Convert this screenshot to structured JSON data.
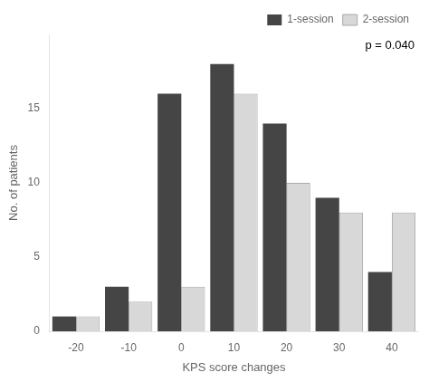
{
  "chart_data": {
    "type": "bar",
    "categories": [
      -20,
      -10,
      0,
      10,
      20,
      30,
      40
    ],
    "series": [
      {
        "name": "1-session",
        "color": "#454545",
        "values": [
          1,
          3,
          16,
          18,
          14,
          9,
          4
        ]
      },
      {
        "name": "2-session",
        "color": "#d8d8d8",
        "values": [
          1,
          2,
          3,
          16,
          10,
          8,
          8
        ]
      }
    ],
    "xlabel": "KPS score changes",
    "ylabel": "No. of patients",
    "ylim": [
      0,
      20
    ],
    "yticks": [
      0,
      5,
      10,
      15
    ],
    "annotation": "p = 0.040",
    "legend": "upper right",
    "grid": false
  }
}
